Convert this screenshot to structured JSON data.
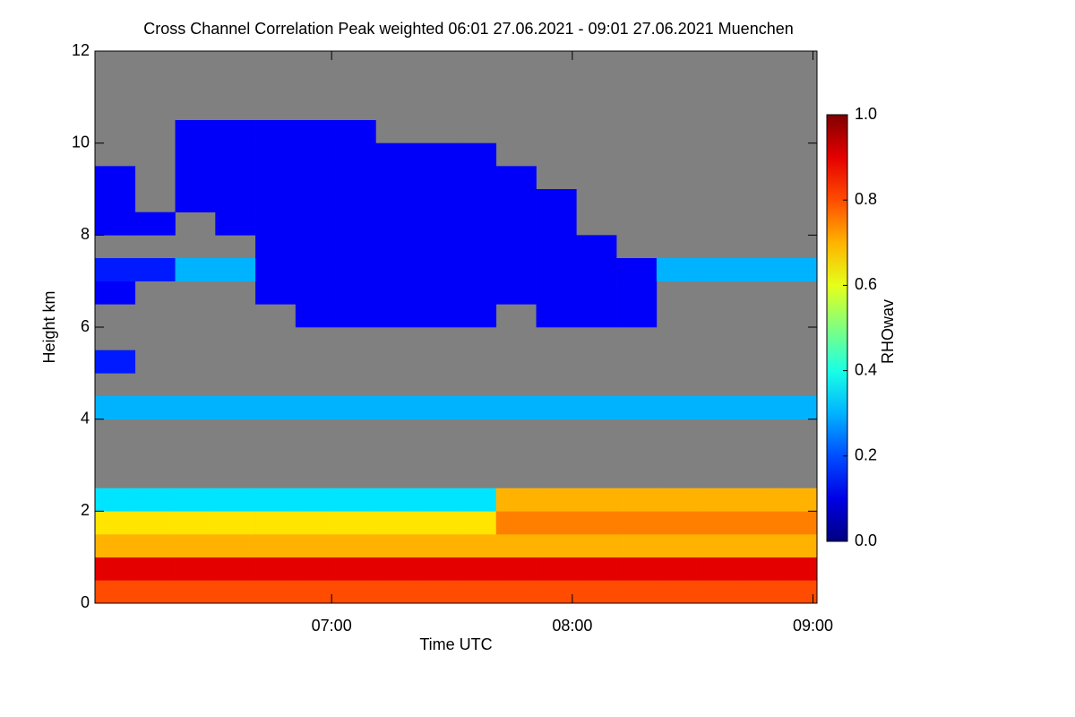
{
  "chart_data": {
    "type": "heatmap",
    "title": "Cross Channel Correlation Peak weighted   06:01 27.06.2021 - 09:01 27.06.2021 Muenchen",
    "xlabel": "Time UTC",
    "ylabel": "Height km",
    "colorbar_label": "RHOwav",
    "colormap": "jet",
    "missing_color": "#808080",
    "xlim": [
      6.0167,
      9.0167
    ],
    "xticks": [
      {
        "value": 7,
        "label": "07:00"
      },
      {
        "value": 8,
        "label": "08:00"
      },
      {
        "value": 9,
        "label": "09:00"
      }
    ],
    "ylim": [
      0,
      12
    ],
    "yticks": [
      0,
      2,
      4,
      6,
      8,
      10,
      12
    ],
    "clim": [
      0,
      1
    ],
    "cticks": [
      {
        "value": 0,
        "label": "0.0"
      },
      {
        "value": 0.2,
        "label": "0.2"
      },
      {
        "value": 0.4,
        "label": "0.4"
      },
      {
        "value": 0.6,
        "label": "0.6"
      },
      {
        "value": 0.8,
        "label": "0.8"
      },
      {
        "value": 1,
        "label": "1.0"
      }
    ],
    "xbins": [
      6.0167,
      6.1833,
      6.35,
      6.5167,
      6.6833,
      6.85,
      7.0167,
      7.1833,
      7.35,
      7.5167,
      7.6833,
      7.85,
      8.0167,
      8.1833,
      8.35,
      8.5167,
      8.6833,
      8.85,
      9.0167
    ],
    "ybins": [
      0,
      0.5,
      1,
      1.5,
      2,
      2.5,
      3,
      3.5,
      4,
      4.5,
      5,
      5.5,
      6,
      6.5,
      7,
      7.5,
      8,
      8.5,
      9,
      9.5,
      10,
      10.5,
      11,
      11.5,
      12
    ],
    "z": [
      [
        0.8,
        0.8,
        0.8,
        0.8,
        0.8,
        0.8,
        0.8,
        0.8,
        0.8,
        0.8,
        0.8,
        0.8,
        0.8,
        0.8,
        0.8,
        0.8,
        0.8,
        0.8
      ],
      [
        0.9,
        0.9,
        0.9,
        0.9,
        0.9,
        0.9,
        0.9,
        0.9,
        0.9,
        0.9,
        0.9,
        0.9,
        0.9,
        0.9,
        0.9,
        0.9,
        0.9,
        0.9
      ],
      [
        0.7,
        0.7,
        0.7,
        0.7,
        0.7,
        0.7,
        0.7,
        0.7,
        0.7,
        0.7,
        0.7,
        0.7,
        0.7,
        0.7,
        0.7,
        0.7,
        0.7,
        0.7
      ],
      [
        0.65,
        0.65,
        0.65,
        0.65,
        0.65,
        0.65,
        0.65,
        0.65,
        0.65,
        0.65,
        0.75,
        0.75,
        0.75,
        0.75,
        0.75,
        0.75,
        0.75,
        0.75
      ],
      [
        0.35,
        0.35,
        0.35,
        0.35,
        0.35,
        0.35,
        0.35,
        0.35,
        0.35,
        0.35,
        0.7,
        0.7,
        0.7,
        0.7,
        0.7,
        0.7,
        0.7,
        0.7
      ],
      [
        null,
        null,
        null,
        null,
        null,
        null,
        null,
        null,
        null,
        null,
        null,
        null,
        null,
        null,
        null,
        null,
        null,
        null
      ],
      [
        null,
        null,
        null,
        null,
        null,
        null,
        null,
        null,
        null,
        null,
        null,
        null,
        null,
        null,
        null,
        null,
        null,
        null
      ],
      [
        null,
        null,
        null,
        null,
        null,
        null,
        null,
        null,
        null,
        null,
        null,
        null,
        null,
        null,
        null,
        null,
        null,
        null
      ],
      [
        0.3,
        0.3,
        0.3,
        0.3,
        0.3,
        0.3,
        0.3,
        0.3,
        0.3,
        0.3,
        0.3,
        0.3,
        0.3,
        0.3,
        0.3,
        0.3,
        0.3,
        0.3
      ],
      [
        null,
        null,
        null,
        null,
        null,
        null,
        null,
        null,
        null,
        null,
        null,
        null,
        null,
        null,
        null,
        null,
        null,
        null
      ],
      [
        0.15,
        null,
        null,
        null,
        null,
        null,
        null,
        null,
        null,
        null,
        null,
        null,
        null,
        null,
        null,
        null,
        null,
        null
      ],
      [
        null,
        null,
        null,
        null,
        null,
        null,
        null,
        null,
        null,
        null,
        null,
        null,
        null,
        null,
        null,
        null,
        null,
        null
      ],
      [
        null,
        null,
        null,
        null,
        null,
        0.12,
        0.12,
        0.12,
        0.12,
        0.12,
        null,
        0.12,
        0.12,
        0.12,
        null,
        null,
        null,
        null
      ],
      [
        0.12,
        null,
        null,
        null,
        0.12,
        0.12,
        0.12,
        0.12,
        0.12,
        0.12,
        0.12,
        0.12,
        0.12,
        0.12,
        null,
        null,
        null,
        null
      ],
      [
        0.15,
        0.15,
        0.3,
        0.3,
        0.12,
        0.12,
        0.12,
        0.12,
        0.12,
        0.12,
        0.12,
        0.12,
        0.12,
        0.12,
        0.3,
        0.3,
        0.3,
        0.3
      ],
      [
        null,
        null,
        null,
        null,
        0.12,
        0.12,
        0.12,
        0.12,
        0.12,
        0.12,
        0.12,
        0.12,
        0.12,
        null,
        null,
        null,
        null,
        null
      ],
      [
        0.12,
        0.12,
        null,
        0.12,
        0.12,
        0.12,
        0.12,
        0.12,
        0.12,
        0.12,
        0.12,
        0.12,
        null,
        null,
        null,
        null,
        null,
        null
      ],
      [
        0.12,
        null,
        0.12,
        0.12,
        0.12,
        0.12,
        0.12,
        0.12,
        0.12,
        0.12,
        0.12,
        0.12,
        null,
        null,
        null,
        null,
        null,
        null
      ],
      [
        0.12,
        null,
        0.12,
        0.12,
        0.12,
        0.12,
        0.12,
        0.12,
        0.12,
        0.12,
        0.12,
        null,
        null,
        null,
        null,
        null,
        null,
        null
      ],
      [
        null,
        null,
        0.12,
        0.12,
        0.12,
        0.12,
        0.12,
        0.12,
        0.12,
        0.12,
        null,
        null,
        null,
        null,
        null,
        null,
        null,
        null
      ],
      [
        null,
        null,
        0.12,
        0.12,
        0.12,
        0.12,
        0.12,
        null,
        null,
        null,
        null,
        null,
        null,
        null,
        null,
        null,
        null,
        null
      ],
      [
        null,
        null,
        null,
        null,
        null,
        null,
        null,
        null,
        null,
        null,
        null,
        null,
        null,
        null,
        null,
        null,
        null,
        null
      ],
      [
        null,
        null,
        null,
        null,
        null,
        null,
        null,
        null,
        null,
        null,
        null,
        null,
        null,
        null,
        null,
        null,
        null,
        null
      ],
      [
        null,
        null,
        null,
        null,
        null,
        null,
        null,
        null,
        null,
        null,
        null,
        null,
        null,
        null,
        null,
        null,
        null,
        null
      ]
    ]
  }
}
